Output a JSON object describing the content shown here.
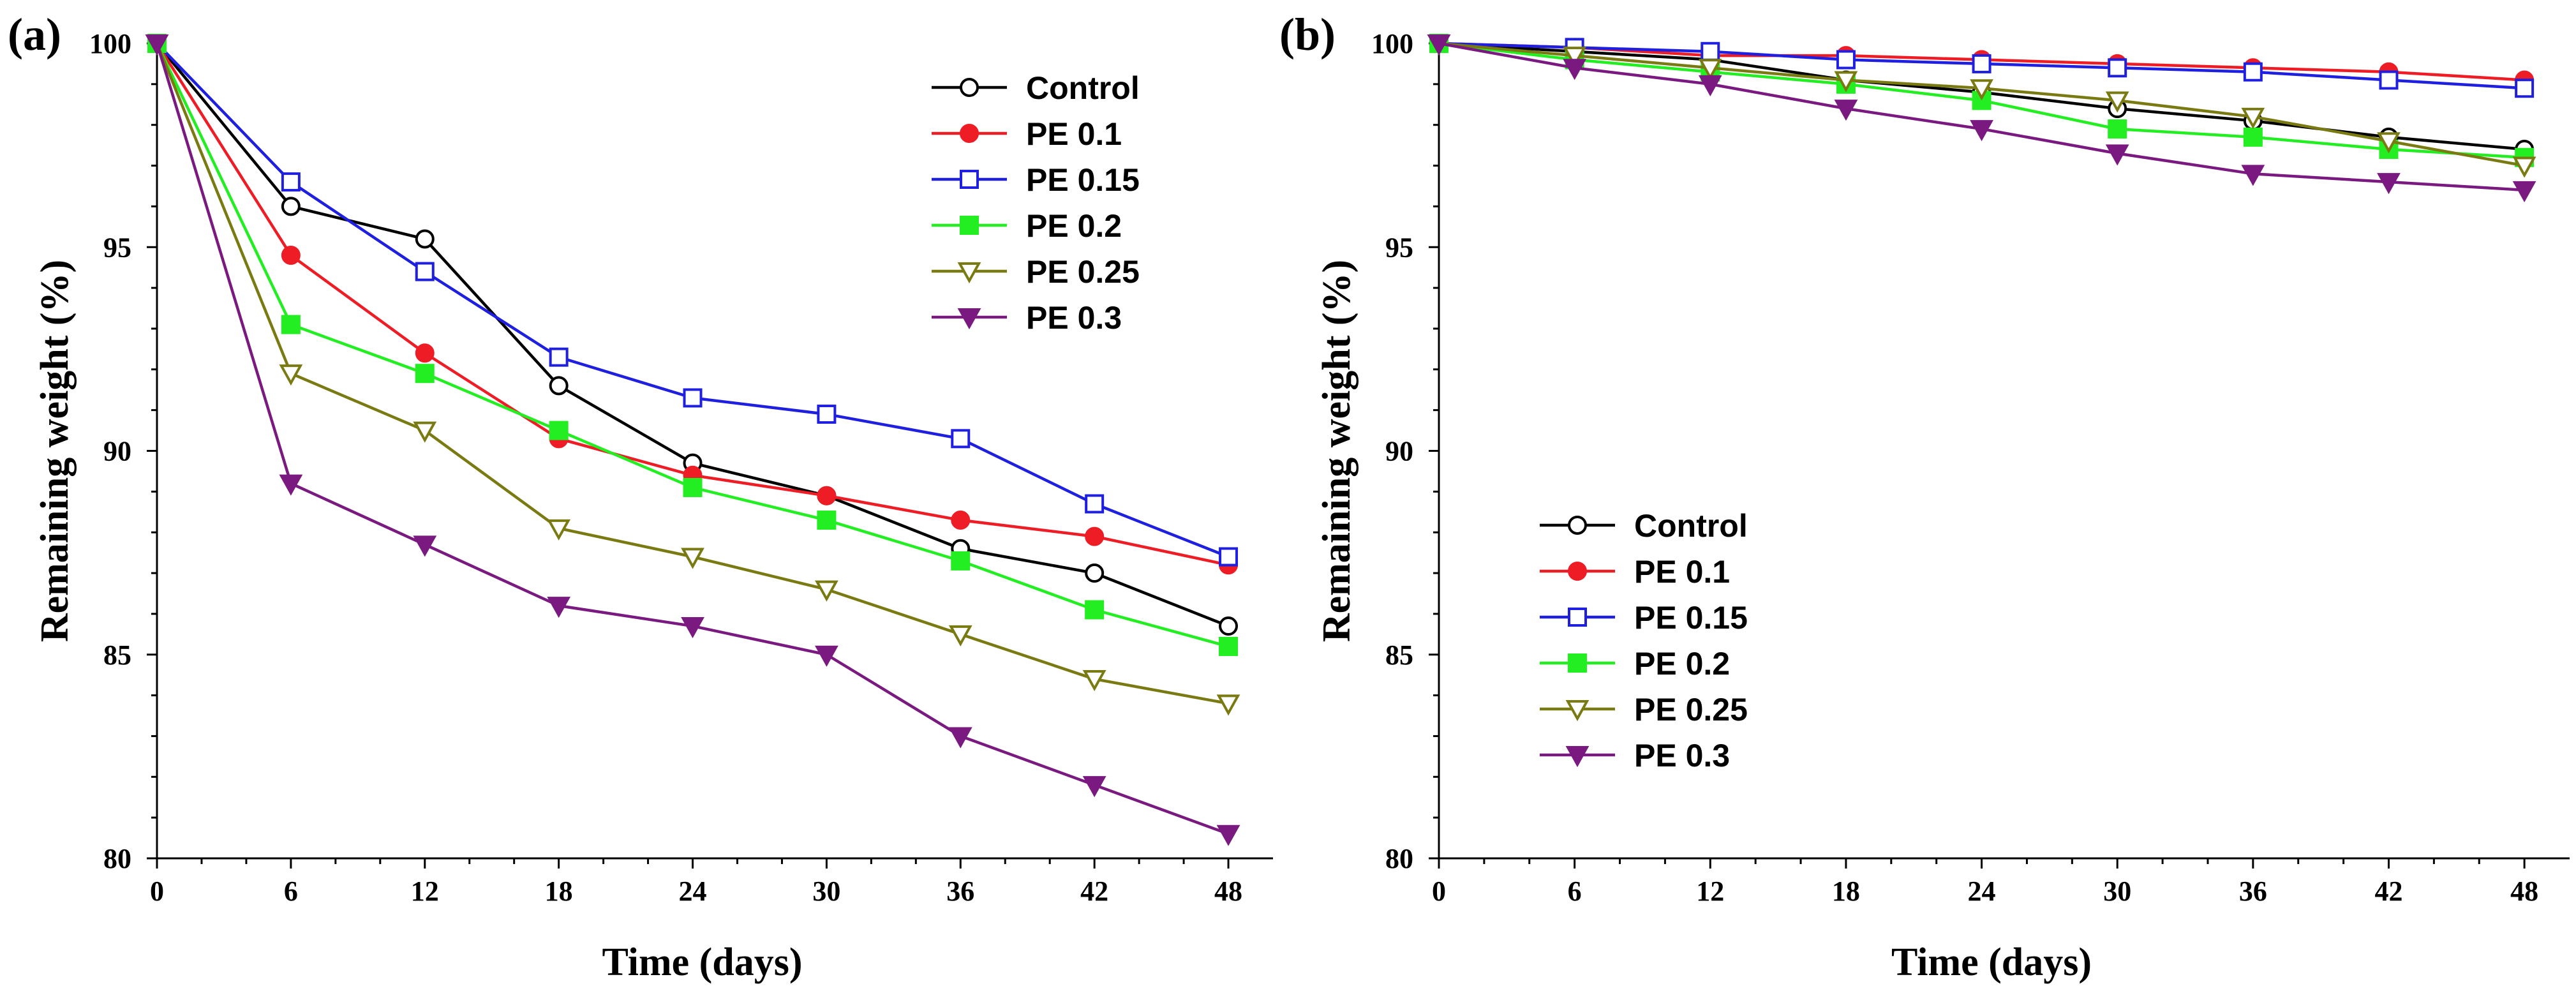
{
  "chart_data": [
    {
      "type": "line",
      "panel_label": "(a)",
      "title": "",
      "xlabel": "Time (days)",
      "ylabel": "Remaining weight (%)",
      "xlim": [
        0,
        50
      ],
      "ylim": [
        80,
        100
      ],
      "x_ticks": [
        0,
        6,
        12,
        18,
        24,
        30,
        36,
        42,
        48
      ],
      "y_ticks": [
        80,
        85,
        90,
        95,
        100
      ],
      "legend_position": "top-right",
      "x": [
        0,
        6,
        12,
        18,
        24,
        30,
        36,
        42,
        48
      ],
      "series": [
        {
          "name": "Control",
          "color": "#000000",
          "marker": "circle-open",
          "values": [
            100,
            96.0,
            95.2,
            91.6,
            89.7,
            88.9,
            87.6,
            87.0,
            85.7
          ]
        },
        {
          "name": "PE 0.1",
          "color": "#ee1c25",
          "marker": "circle-filled",
          "values": [
            100,
            94.8,
            92.4,
            90.3,
            89.4,
            88.9,
            88.3,
            87.9,
            87.2
          ]
        },
        {
          "name": "PE 0.15",
          "color": "#1f1fe0",
          "marker": "square-open",
          "values": [
            100,
            96.6,
            94.4,
            92.3,
            91.3,
            90.9,
            90.3,
            88.7,
            87.4
          ]
        },
        {
          "name": "PE 0.2",
          "color": "#22ee22",
          "marker": "square-filled",
          "values": [
            100,
            93.1,
            91.9,
            90.5,
            89.1,
            88.3,
            87.3,
            86.1,
            85.2
          ]
        },
        {
          "name": "PE 0.25",
          "color": "#7a7a12",
          "marker": "triangle-down-open",
          "values": [
            100,
            91.9,
            90.5,
            88.1,
            87.4,
            86.6,
            85.5,
            84.4,
            83.8
          ]
        },
        {
          "name": "PE 0.3",
          "color": "#7a1a80",
          "marker": "triangle-down-filled",
          "values": [
            100,
            89.2,
            87.7,
            86.2,
            85.7,
            85.0,
            83.0,
            81.8,
            80.6
          ]
        }
      ]
    },
    {
      "type": "line",
      "panel_label": "(b)",
      "title": "",
      "xlabel": "Time (days)",
      "ylabel": "Remaining weight (%)",
      "xlim": [
        0,
        50
      ],
      "ylim": [
        80,
        100
      ],
      "x_ticks": [
        0,
        6,
        12,
        18,
        24,
        30,
        36,
        42,
        48
      ],
      "y_ticks": [
        80,
        85,
        90,
        95,
        100
      ],
      "legend_position": "center-left",
      "x": [
        0,
        6,
        12,
        18,
        24,
        30,
        36,
        42,
        48
      ],
      "series": [
        {
          "name": "Control",
          "color": "#000000",
          "marker": "circle-open",
          "values": [
            100,
            99.8,
            99.6,
            99.1,
            98.8,
            98.4,
            98.1,
            97.7,
            97.4
          ]
        },
        {
          "name": "PE 0.1",
          "color": "#ee1c25",
          "marker": "circle-filled",
          "values": [
            100,
            99.9,
            99.7,
            99.7,
            99.6,
            99.5,
            99.4,
            99.3,
            99.1
          ]
        },
        {
          "name": "PE 0.15",
          "color": "#1f1fe0",
          "marker": "square-open",
          "values": [
            100,
            99.9,
            99.8,
            99.6,
            99.5,
            99.4,
            99.3,
            99.1,
            98.9
          ]
        },
        {
          "name": "PE 0.2",
          "color": "#22ee22",
          "marker": "square-filled",
          "values": [
            100,
            99.6,
            99.3,
            99.0,
            98.6,
            97.9,
            97.7,
            97.4,
            97.2
          ]
        },
        {
          "name": "PE 0.25",
          "color": "#7a7a12",
          "marker": "triangle-down-open",
          "values": [
            100,
            99.7,
            99.4,
            99.1,
            98.9,
            98.6,
            98.2,
            97.6,
            97.0
          ]
        },
        {
          "name": "PE 0.3",
          "color": "#7a1a80",
          "marker": "triangle-down-filled",
          "values": [
            100,
            99.4,
            99.0,
            98.4,
            97.9,
            97.3,
            96.8,
            96.6,
            96.4
          ]
        }
      ]
    }
  ]
}
